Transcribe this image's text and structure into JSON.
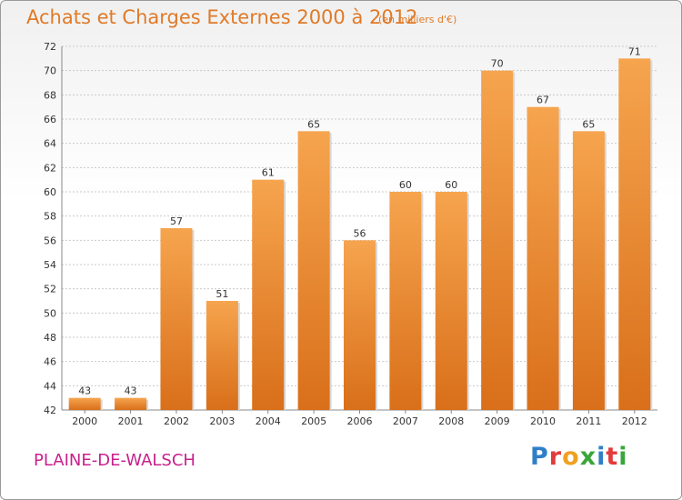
{
  "chart_data": {
    "type": "bar",
    "title": "Achats et Charges Externes 2000 à 2012",
    "subtitle": "(en milliers d'€)",
    "categories": [
      "2000",
      "2001",
      "2002",
      "2003",
      "2004",
      "2005",
      "2006",
      "2007",
      "2008",
      "2009",
      "2010",
      "2011",
      "2012"
    ],
    "values": [
      43,
      43,
      57,
      51,
      61,
      65,
      56,
      60,
      60,
      70,
      67,
      65,
      71
    ],
    "ylim": [
      42,
      72
    ],
    "yticks": [
      42,
      44,
      46,
      48,
      50,
      52,
      54,
      56,
      58,
      60,
      62,
      64,
      66,
      68,
      70,
      72
    ],
    "xlabel": "",
    "ylabel": "",
    "grid": true,
    "bar_color": "#ee8a2e"
  },
  "footer": {
    "commune": "PLAINE-DE-WALSCH",
    "logo_text": "Proxiti"
  }
}
